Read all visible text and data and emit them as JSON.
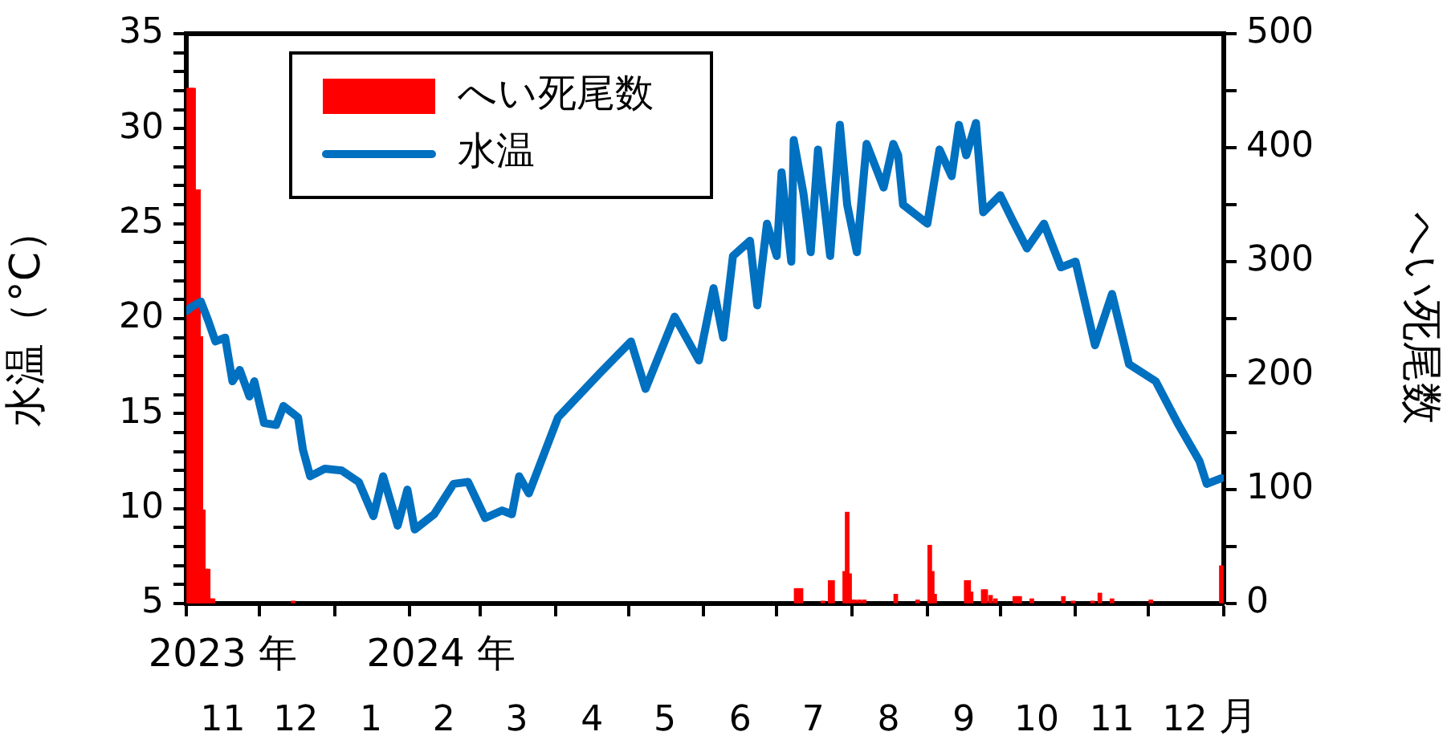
{
  "chart_data": {
    "type": "line",
    "xlabel": "月",
    "ylabel": "水温（°C）",
    "y2label": "へい死尾数",
    "annotations": [
      "2023 年",
      "2024 年"
    ],
    "xlim": [
      "2023-11-01",
      "2025-01-01"
    ],
    "xticks": [
      {
        "value": "2023-11-01",
        "label": null
      },
      {
        "value": "2023-11-16",
        "label": "11"
      },
      {
        "value": "2023-12-01",
        "label": null
      },
      {
        "value": "2023-12-16",
        "label": "12"
      },
      {
        "value": "2024-01-01",
        "label": null
      },
      {
        "value": "2024-01-16",
        "label": "1"
      },
      {
        "value": "2024-02-01",
        "label": null
      },
      {
        "value": "2024-02-15",
        "label": "2"
      },
      {
        "value": "2024-03-01",
        "label": null
      },
      {
        "value": "2024-03-16",
        "label": "3"
      },
      {
        "value": "2024-04-01",
        "label": null
      },
      {
        "value": "2024-04-16",
        "label": "4"
      },
      {
        "value": "2024-05-01",
        "label": null
      },
      {
        "value": "2024-05-16",
        "label": "5"
      },
      {
        "value": "2024-06-01",
        "label": null
      },
      {
        "value": "2024-06-16",
        "label": "6"
      },
      {
        "value": "2024-07-01",
        "label": null
      },
      {
        "value": "2024-07-16",
        "label": "7"
      },
      {
        "value": "2024-08-01",
        "label": null
      },
      {
        "value": "2024-08-16",
        "label": "8"
      },
      {
        "value": "2024-09-01",
        "label": null
      },
      {
        "value": "2024-09-16",
        "label": "9"
      },
      {
        "value": "2024-10-01",
        "label": null
      },
      {
        "value": "2024-10-16",
        "label": "10"
      },
      {
        "value": "2024-11-01",
        "label": null
      },
      {
        "value": "2024-11-16",
        "label": "11"
      },
      {
        "value": "2024-12-01",
        "label": null
      },
      {
        "value": "2024-12-16",
        "label": "12"
      },
      {
        "value": "2025-01-01",
        "label": null
      }
    ],
    "ylim": [
      5,
      35
    ],
    "yticks": [
      5,
      {
        "value": 6,
        "label": null
      },
      {
        "value": 7,
        "label": null
      },
      {
        "value": 8,
        "label": null
      },
      {
        "value": 9,
        "label": null
      },
      10,
      {
        "value": 11,
        "label": null
      },
      {
        "value": 12,
        "label": null
      },
      {
        "value": 13,
        "label": null
      },
      {
        "value": 14,
        "label": null
      },
      15,
      {
        "value": 16,
        "label": null
      },
      {
        "value": 17,
        "label": null
      },
      {
        "value": 18,
        "label": null
      },
      {
        "value": 19,
        "label": null
      },
      20,
      {
        "value": 21,
        "label": null
      },
      {
        "value": 22,
        "label": null
      },
      {
        "value": 23,
        "label": null
      },
      {
        "value": 24,
        "label": null
      },
      25,
      {
        "value": 26,
        "label": null
      },
      {
        "value": 27,
        "label": null
      },
      {
        "value": 28,
        "label": null
      },
      {
        "value": 29,
        "label": null
      },
      30,
      {
        "value": 31,
        "label": null
      },
      {
        "value": 32,
        "label": null
      },
      {
        "value": 33,
        "label": null
      },
      {
        "value": 34,
        "label": null
      },
      35
    ],
    "y2lim": [
      0,
      500
    ],
    "y2ticks": [
      0,
      {
        "value": 50,
        "label": null
      },
      100,
      {
        "value": 150,
        "label": null
      },
      200,
      {
        "value": 250,
        "label": null
      },
      300,
      {
        "value": 350,
        "label": null
      },
      400,
      {
        "value": 450,
        "label": null
      },
      500
    ],
    "legend": "top left",
    "series": [
      {
        "name": "へい死尾数",
        "type": "bar",
        "axis": "y2",
        "color": "#ff0000",
        "x": [
          "2023-11-02",
          "2023-11-03",
          "2023-11-04",
          "2023-11-05",
          "2023-11-06",
          "2023-11-07",
          "2023-11-08",
          "2023-11-09",
          "2023-11-10",
          "2023-11-11",
          "2023-11-12",
          "2023-12-15",
          "2024-07-09",
          "2024-07-10",
          "2024-07-11",
          "2024-07-20",
          "2024-07-23",
          "2024-07-24",
          "2024-07-29",
          "2024-07-30",
          "2024-07-31",
          "2024-08-01",
          "2024-08-02",
          "2024-08-04",
          "2024-08-06",
          "2024-08-19",
          "2024-08-28",
          "2024-09-02",
          "2024-09-03",
          "2024-09-04",
          "2024-09-17",
          "2024-09-18",
          "2024-09-19",
          "2024-09-24",
          "2024-09-25",
          "2024-09-27",
          "2024-09-29",
          "2024-10-07",
          "2024-10-08",
          "2024-10-09",
          "2024-10-14",
          "2024-10-27",
          "2024-10-31",
          "2024-11-08",
          "2024-11-11",
          "2024-11-16",
          "2024-12-02",
          "2024-12-31"
        ],
        "values": [
          452,
          452,
          452,
          363,
          363,
          234,
          82,
          30,
          30,
          4,
          4,
          2,
          13,
          13,
          13,
          2,
          20,
          20,
          28,
          80,
          26,
          3,
          3,
          3,
          3,
          8,
          3,
          51,
          28,
          8,
          20,
          20,
          10,
          12,
          12,
          7,
          4,
          6,
          6,
          6,
          4,
          6,
          2,
          2,
          9,
          4,
          3,
          33
        ]
      },
      {
        "name": "水温",
        "color": "#0070c0",
        "x": [
          "2023-11-01",
          "2023-11-03",
          "2023-11-07",
          "2023-11-10",
          "2023-11-13",
          "2023-11-17",
          "2023-11-20",
          "2023-11-23",
          "2023-11-27",
          "2023-11-29",
          "2023-12-03",
          "2023-12-08",
          "2023-12-11",
          "2023-12-17",
          "2023-12-19",
          "2023-12-22",
          "2023-12-28",
          "2024-01-04",
          "2024-01-11",
          "2024-01-17",
          "2024-01-21",
          "2024-01-27",
          "2024-01-31",
          "2024-02-03",
          "2024-02-11",
          "2024-02-19",
          "2024-02-25",
          "2024-03-03",
          "2024-03-10",
          "2024-03-14",
          "2024-03-17",
          "2024-03-21",
          "2024-04-02",
          "2024-04-19",
          "2024-05-02",
          "2024-05-08",
          "2024-05-20",
          "2024-05-30",
          "2024-06-05",
          "2024-06-09",
          "2024-06-13",
          "2024-06-20",
          "2024-06-23",
          "2024-06-27",
          "2024-07-01",
          "2024-07-03",
          "2024-07-07",
          "2024-07-08",
          "2024-07-12",
          "2024-07-15",
          "2024-07-18",
          "2024-07-23",
          "2024-07-27",
          "2024-07-30",
          "2024-08-03",
          "2024-08-07",
          "2024-08-14",
          "2024-08-18",
          "2024-08-20",
          "2024-08-22",
          "2024-09-01",
          "2024-09-06",
          "2024-09-11",
          "2024-09-14",
          "2024-09-17",
          "2024-09-21",
          "2024-09-24",
          "2024-10-01",
          "2024-10-06",
          "2024-10-12",
          "2024-10-19",
          "2024-10-26",
          "2024-11-01",
          "2024-11-09",
          "2024-11-16",
          "2024-11-23",
          "2024-12-04",
          "2024-12-13",
          "2024-12-22",
          "2024-12-25",
          "2024-12-31"
        ],
        "values": [
          20.4,
          20.6,
          20.9,
          19.9,
          18.8,
          19.0,
          16.7,
          17.3,
          15.9,
          16.7,
          14.5,
          14.4,
          15.4,
          14.8,
          13.1,
          11.7,
          12.1,
          12.0,
          11.4,
          9.6,
          11.7,
          9.1,
          11.0,
          8.9,
          9.7,
          11.3,
          11.4,
          9.5,
          9.9,
          9.7,
          11.7,
          10.8,
          14.8,
          17.1,
          18.8,
          16.3,
          20.1,
          17.8,
          21.6,
          19.0,
          23.3,
          24.1,
          20.7,
          25.0,
          23.3,
          27.7,
          23.0,
          29.4,
          26.6,
          23.5,
          28.9,
          23.3,
          30.2,
          26.0,
          23.5,
          29.2,
          26.9,
          29.2,
          28.6,
          26.0,
          25.0,
          28.9,
          27.5,
          30.2,
          28.6,
          30.3,
          25.6,
          26.5,
          25.2,
          23.7,
          25.0,
          22.7,
          23.0,
          18.6,
          21.3,
          17.6,
          16.7,
          14.5,
          12.5,
          11.3,
          11.6
        ]
      }
    ]
  }
}
